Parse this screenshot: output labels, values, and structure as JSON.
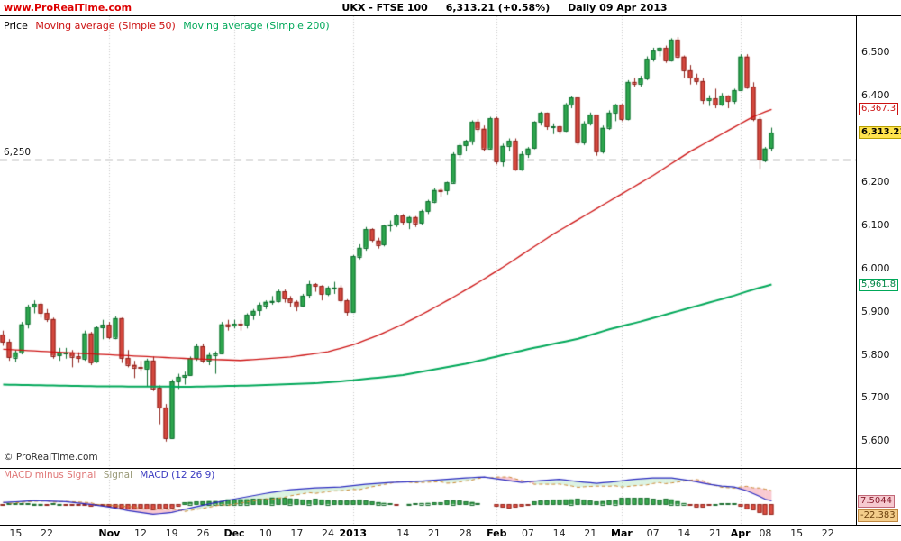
{
  "header": {
    "site": "www.ProRealTime.com",
    "symbol_title": "UKX - FTSE 100",
    "price_change": "6,313.21 (+0.58%)",
    "timeframe_date": "Daily  09 Apr 2013"
  },
  "price_legend": {
    "price": "Price",
    "ma50": "Moving average (Simple 50)",
    "ma200": "Moving average (Simple 200)"
  },
  "macd_legend": {
    "hist": "MACD minus Signal",
    "signal": "Signal",
    "macd": "MACD (12 26 9)"
  },
  "footer": {
    "copyright": "© ProRealTime.com"
  },
  "chart_data": {
    "type": "candlestick",
    "title": "UKX - FTSE 100 Daily with SMA50, SMA200 and MACD(12,26,9)",
    "ymax": 6583,
    "ymin": 5537,
    "total_slots": 137,
    "y_ticks": [
      [
        "6,500",
        6500
      ],
      [
        "6,400",
        6400
      ],
      [
        "6,200",
        6200
      ],
      [
        "6,100",
        6100
      ],
      [
        "6,000",
        6000
      ],
      [
        "5,900",
        5900
      ],
      [
        "5,800",
        5800
      ],
      [
        "5,700",
        5700
      ],
      [
        "5,600",
        5600
      ]
    ],
    "x_ticks": [
      [
        "15",
        2,
        0
      ],
      [
        "22",
        7,
        0
      ],
      [
        "Nov",
        17,
        1
      ],
      [
        "12",
        22,
        0
      ],
      [
        "19",
        27,
        0
      ],
      [
        "26",
        32,
        0
      ],
      [
        "Dec",
        37,
        1
      ],
      [
        "10",
        42,
        0
      ],
      [
        "17",
        47,
        0
      ],
      [
        "24",
        52,
        0
      ],
      [
        "2013",
        56,
        1
      ],
      [
        "14",
        64,
        0
      ],
      [
        "21",
        69,
        0
      ],
      [
        "28",
        74,
        0
      ],
      [
        "Feb",
        79,
        1
      ],
      [
        "07",
        84,
        0
      ],
      [
        "14",
        89,
        0
      ],
      [
        "21",
        94,
        0
      ],
      [
        "Mar",
        99,
        1
      ],
      [
        "07",
        104,
        0
      ],
      [
        "14",
        109,
        0
      ],
      [
        "21",
        114,
        0
      ],
      [
        "Apr",
        118,
        1
      ],
      [
        "08",
        122,
        0
      ],
      [
        "15",
        127,
        0
      ],
      [
        "22",
        132,
        0
      ]
    ],
    "month_gridlines": [
      17,
      37,
      56,
      79,
      99,
      118
    ],
    "hline": {
      "value": 6250,
      "label": "6,250"
    },
    "markers": {
      "ma50": {
        "label": "6,367.3",
        "value": 6367.3
      },
      "last": {
        "label": "6,313.21",
        "value": 6313.21
      },
      "ma200": {
        "label": "5,961.8",
        "value": 5961.8
      },
      "macd_value": {
        "label": "7.5044",
        "value": 7.5044
      },
      "hist_value": {
        "label": "-22.383",
        "value": -22.383
      }
    },
    "candles": [
      [
        5845,
        5855,
        5820,
        5829
      ],
      [
        5829,
        5835,
        5785,
        5793
      ],
      [
        5793,
        5810,
        5782,
        5805
      ],
      [
        5805,
        5875,
        5800,
        5870
      ],
      [
        5870,
        5915,
        5860,
        5910
      ],
      [
        5910,
        5925,
        5895,
        5917
      ],
      [
        5917,
        5920,
        5885,
        5896
      ],
      [
        5896,
        5905,
        5875,
        5882
      ],
      [
        5882,
        5885,
        5790,
        5797
      ],
      [
        5797,
        5815,
        5785,
        5804
      ],
      [
        5804,
        5815,
        5790,
        5805
      ],
      [
        5805,
        5810,
        5770,
        5795
      ],
      [
        5795,
        5805,
        5780,
        5790
      ],
      [
        5790,
        5855,
        5785,
        5849
      ],
      [
        5849,
        5852,
        5775,
        5783
      ],
      [
        5783,
        5865,
        5780,
        5862
      ],
      [
        5862,
        5880,
        5835,
        5868
      ],
      [
        5868,
        5875,
        5835,
        5839
      ],
      [
        5839,
        5888,
        5835,
        5884
      ],
      [
        5884,
        5885,
        5780,
        5792
      ],
      [
        5792,
        5810,
        5770,
        5776
      ],
      [
        5776,
        5785,
        5745,
        5770
      ],
      [
        5770,
        5785,
        5760,
        5767
      ],
      [
        5767,
        5790,
        5725,
        5786
      ],
      [
        5786,
        5795,
        5715,
        5722
      ],
      [
        5722,
        5728,
        5638,
        5677
      ],
      [
        5677,
        5685,
        5598,
        5606
      ],
      [
        5606,
        5742,
        5604,
        5738
      ],
      [
        5738,
        5755,
        5720,
        5748
      ],
      [
        5748,
        5760,
        5730,
        5752
      ],
      [
        5752,
        5795,
        5750,
        5791
      ],
      [
        5791,
        5825,
        5785,
        5819
      ],
      [
        5819,
        5825,
        5780,
        5786
      ],
      [
        5786,
        5805,
        5775,
        5799
      ],
      [
        5799,
        5807,
        5755,
        5803
      ],
      [
        5803,
        5875,
        5800,
        5870
      ],
      [
        5870,
        5880,
        5855,
        5866
      ],
      [
        5866,
        5880,
        5860,
        5871
      ],
      [
        5871,
        5880,
        5855,
        5869
      ],
      [
        5869,
        5895,
        5860,
        5892
      ],
      [
        5892,
        5905,
        5880,
        5901
      ],
      [
        5901,
        5920,
        5890,
        5914
      ],
      [
        5914,
        5925,
        5905,
        5922
      ],
      [
        5922,
        5935,
        5915,
        5924
      ],
      [
        5924,
        5950,
        5920,
        5946
      ],
      [
        5946,
        5950,
        5920,
        5930
      ],
      [
        5930,
        5935,
        5910,
        5922
      ],
      [
        5922,
        5925,
        5900,
        5912
      ],
      [
        5912,
        5940,
        5910,
        5936
      ],
      [
        5936,
        5970,
        5930,
        5962
      ],
      [
        5962,
        5965,
        5945,
        5958
      ],
      [
        5958,
        5960,
        5925,
        5940
      ],
      [
        5940,
        5958,
        5935,
        5954
      ],
      [
        5954,
        5968,
        5940,
        5955
      ],
      [
        5955,
        5960,
        5920,
        5925
      ],
      [
        5925,
        5928,
        5890,
        5898
      ],
      [
        5898,
        6030,
        5896,
        6027
      ],
      [
        6027,
        6055,
        6020,
        6047
      ],
      [
        6047,
        6095,
        6040,
        6090
      ],
      [
        6090,
        6092,
        6060,
        6064
      ],
      [
        6064,
        6070,
        6045,
        6054
      ],
      [
        6054,
        6100,
        6050,
        6098
      ],
      [
        6098,
        6110,
        6085,
        6101
      ],
      [
        6101,
        6125,
        6095,
        6121
      ],
      [
        6121,
        6125,
        6100,
        6107
      ],
      [
        6107,
        6120,
        6090,
        6118
      ],
      [
        6118,
        6120,
        6095,
        6104
      ],
      [
        6104,
        6135,
        6100,
        6132
      ],
      [
        6132,
        6158,
        6125,
        6154
      ],
      [
        6154,
        6185,
        6150,
        6181
      ],
      [
        6181,
        6185,
        6165,
        6179
      ],
      [
        6179,
        6200,
        6170,
        6198
      ],
      [
        6198,
        6268,
        6195,
        6264
      ],
      [
        6264,
        6288,
        6255,
        6284
      ],
      [
        6284,
        6297,
        6270,
        6294
      ],
      [
        6294,
        6342,
        6285,
        6339
      ],
      [
        6339,
        6345,
        6315,
        6323
      ],
      [
        6323,
        6330,
        6270,
        6277
      ],
      [
        6277,
        6350,
        6275,
        6347
      ],
      [
        6347,
        6350,
        6240,
        6247
      ],
      [
        6247,
        6288,
        6235,
        6283
      ],
      [
        6283,
        6300,
        6270,
        6295
      ],
      [
        6295,
        6300,
        6225,
        6228
      ],
      [
        6228,
        6270,
        6225,
        6264
      ],
      [
        6264,
        6280,
        6255,
        6277
      ],
      [
        6277,
        6340,
        6275,
        6338
      ],
      [
        6338,
        6362,
        6330,
        6359
      ],
      [
        6359,
        6360,
        6320,
        6327
      ],
      [
        6327,
        6335,
        6310,
        6328
      ],
      [
        6328,
        6330,
        6310,
        6318
      ],
      [
        6318,
        6382,
        6315,
        6379
      ],
      [
        6379,
        6398,
        6370,
        6395
      ],
      [
        6395,
        6395,
        6285,
        6291
      ],
      [
        6291,
        6340,
        6285,
        6335
      ],
      [
        6335,
        6360,
        6330,
        6355
      ],
      [
        6355,
        6355,
        6260,
        6270
      ],
      [
        6270,
        6330,
        6265,
        6325
      ],
      [
        6325,
        6365,
        6320,
        6360
      ],
      [
        6360,
        6380,
        6340,
        6378
      ],
      [
        6378,
        6380,
        6340,
        6345
      ],
      [
        6345,
        6435,
        6342,
        6431
      ],
      [
        6431,
        6440,
        6420,
        6427
      ],
      [
        6427,
        6445,
        6420,
        6439
      ],
      [
        6439,
        6490,
        6435,
        6484
      ],
      [
        6484,
        6510,
        6478,
        6503
      ],
      [
        6503,
        6512,
        6490,
        6510
      ],
      [
        6510,
        6515,
        6475,
        6481
      ],
      [
        6481,
        6532,
        6478,
        6529
      ],
      [
        6529,
        6535,
        6485,
        6490
      ],
      [
        6490,
        6492,
        6440,
        6458
      ],
      [
        6458,
        6470,
        6425,
        6441
      ],
      [
        6441,
        6450,
        6425,
        6433
      ],
      [
        6433,
        6440,
        6380,
        6389
      ],
      [
        6389,
        6400,
        6375,
        6393
      ],
      [
        6393,
        6415,
        6370,
        6378
      ],
      [
        6378,
        6405,
        6375,
        6399
      ],
      [
        6399,
        6400,
        6370,
        6387
      ],
      [
        6387,
        6415,
        6380,
        6412
      ],
      [
        6412,
        6495,
        6410,
        6490
      ],
      [
        6490,
        6495,
        6415,
        6420
      ],
      [
        6420,
        6430,
        6340,
        6344
      ],
      [
        6344,
        6350,
        6230,
        6250
      ],
      [
        6250,
        6280,
        6245,
        6277
      ],
      [
        6277,
        6325,
        6270,
        6313
      ]
    ],
    "ma50_points": [
      [
        0,
        5812
      ],
      [
        10,
        5804
      ],
      [
        20,
        5797
      ],
      [
        30,
        5790
      ],
      [
        38,
        5786
      ],
      [
        46,
        5794
      ],
      [
        52,
        5806
      ],
      [
        56,
        5822
      ],
      [
        60,
        5844
      ],
      [
        64,
        5870
      ],
      [
        68,
        5900
      ],
      [
        72,
        5932
      ],
      [
        76,
        5966
      ],
      [
        80,
        6002
      ],
      [
        84,
        6040
      ],
      [
        88,
        6078
      ],
      [
        92,
        6112
      ],
      [
        96,
        6146
      ],
      [
        100,
        6180
      ],
      [
        104,
        6214
      ],
      [
        107,
        6242
      ],
      [
        110,
        6270
      ],
      [
        113,
        6294
      ],
      [
        116,
        6318
      ],
      [
        118,
        6334
      ],
      [
        120,
        6350
      ],
      [
        122,
        6362
      ],
      [
        123,
        6367.3
      ]
    ],
    "ma200_points": [
      [
        0,
        5730
      ],
      [
        15,
        5726
      ],
      [
        30,
        5725
      ],
      [
        40,
        5728
      ],
      [
        50,
        5733
      ],
      [
        56,
        5740
      ],
      [
        64,
        5752
      ],
      [
        74,
        5778
      ],
      [
        84,
        5812
      ],
      [
        92,
        5836
      ],
      [
        97,
        5858
      ],
      [
        102,
        5876
      ],
      [
        107,
        5896
      ],
      [
        112,
        5916
      ],
      [
        117,
        5936
      ],
      [
        120,
        5950
      ],
      [
        123,
        5961.8
      ]
    ],
    "macd": {
      "ymax": 78,
      "ymin": -45,
      "macd_points": [
        [
          0,
          4
        ],
        [
          5,
          8
        ],
        [
          10,
          6
        ],
        [
          14,
          0
        ],
        [
          17,
          -6
        ],
        [
          20,
          -14
        ],
        [
          24,
          -22
        ],
        [
          27,
          -18
        ],
        [
          30,
          -8
        ],
        [
          34,
          4
        ],
        [
          38,
          14
        ],
        [
          42,
          24
        ],
        [
          46,
          32
        ],
        [
          50,
          36
        ],
        [
          54,
          38
        ],
        [
          58,
          44
        ],
        [
          62,
          48
        ],
        [
          66,
          50
        ],
        [
          70,
          54
        ],
        [
          74,
          58
        ],
        [
          77,
          60
        ],
        [
          80,
          54
        ],
        [
          83,
          48
        ],
        [
          86,
          52
        ],
        [
          89,
          55
        ],
        [
          92,
          50
        ],
        [
          95,
          46
        ],
        [
          98,
          50
        ],
        [
          101,
          55
        ],
        [
          104,
          58
        ],
        [
          107,
          58
        ],
        [
          110,
          52
        ],
        [
          113,
          44
        ],
        [
          115,
          40
        ],
        [
          117,
          38
        ],
        [
          119,
          30
        ],
        [
          121,
          18
        ],
        [
          122,
          11
        ],
        [
          123,
          7.5
        ]
      ],
      "hist_points": [
        [
          0,
          1
        ],
        [
          6,
          2
        ],
        [
          10,
          -1
        ],
        [
          14,
          -2
        ],
        [
          17,
          -5
        ],
        [
          20,
          -8
        ],
        [
          24,
          -12
        ],
        [
          27,
          -6
        ],
        [
          29,
          3
        ],
        [
          33,
          8
        ],
        [
          37,
          10
        ],
        [
          41,
          13
        ],
        [
          45,
          14
        ],
        [
          49,
          11
        ],
        [
          53,
          8
        ],
        [
          56,
          10
        ],
        [
          59,
          6
        ],
        [
          62,
          3
        ],
        [
          64,
          -2
        ],
        [
          66,
          2
        ],
        [
          69,
          5
        ],
        [
          72,
          8
        ],
        [
          75,
          6
        ],
        [
          77,
          2
        ],
        [
          79,
          -5
        ],
        [
          81,
          -8
        ],
        [
          83,
          -3
        ],
        [
          85,
          5
        ],
        [
          88,
          10
        ],
        [
          91,
          13
        ],
        [
          93,
          9
        ],
        [
          95,
          6
        ],
        [
          97,
          10
        ],
        [
          100,
          13
        ],
        [
          103,
          15
        ],
        [
          105,
          12
        ],
        [
          107,
          10
        ],
        [
          109,
          3
        ],
        [
          111,
          -4
        ],
        [
          113,
          -3
        ],
        [
          115,
          2
        ],
        [
          117,
          3
        ],
        [
          118,
          -3
        ],
        [
          119,
          -8
        ],
        [
          120,
          -14
        ],
        [
          121,
          -19
        ],
        [
          122,
          -23
        ],
        [
          123,
          -22.383
        ]
      ]
    },
    "colors": {
      "up_fill": "#2fa84f",
      "up_border": "#0e6e2f",
      "down_fill": "#d6483f",
      "down_border": "#8f231c",
      "ma50": "#cc1111",
      "ma200": "#00a859",
      "hline": "#111111",
      "grid": "#c8c8c8",
      "macd_line": "#2929c0",
      "signal_line": "#c98833",
      "hist_pos": "#3aa84f",
      "hist_pos_border": "#1d6e31",
      "hist_neg": "#dd4f43",
      "hist_neg_border": "#93261e",
      "fill_neg": "rgba(240,120,140,0.40)",
      "fill_pos": "rgba(140,215,160,0.30)",
      "site": "#dd0000",
      "legend_hist": "#e07878",
      "legend_signal": "#999977",
      "legend_macd": "#3a3ac0"
    }
  }
}
